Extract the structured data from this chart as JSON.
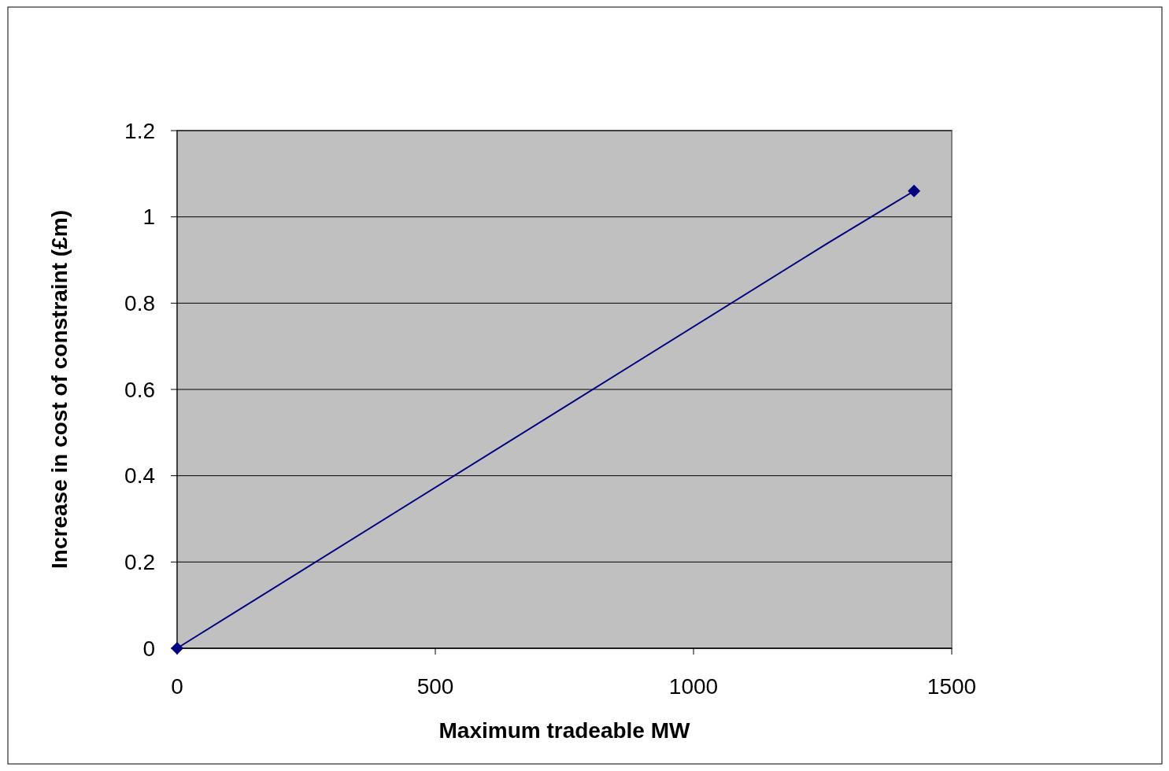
{
  "chart_data": {
    "type": "line",
    "xlabel": "Maximum tradeable MW",
    "ylabel": "Increase in cost of constraint (£m)",
    "xlim": [
      0,
      1500
    ],
    "xticks": [
      0,
      500,
      1000,
      1500
    ],
    "ylim": [
      0,
      1.2
    ],
    "yticks": [
      0,
      0.2,
      0.4,
      0.6,
      0.8,
      1,
      1.2
    ],
    "grid": "y",
    "series": [
      {
        "color": "#000080",
        "x": [
          0,
          1261,
          1427
        ],
        "values": [
          0,
          0.94,
          1.06
        ],
        "marker": "none"
      },
      {
        "type": "scatter",
        "color": "#000080",
        "x": [
          0,
          1427
        ],
        "values": [
          0,
          1.06
        ],
        "marker": "diamond"
      }
    ]
  }
}
